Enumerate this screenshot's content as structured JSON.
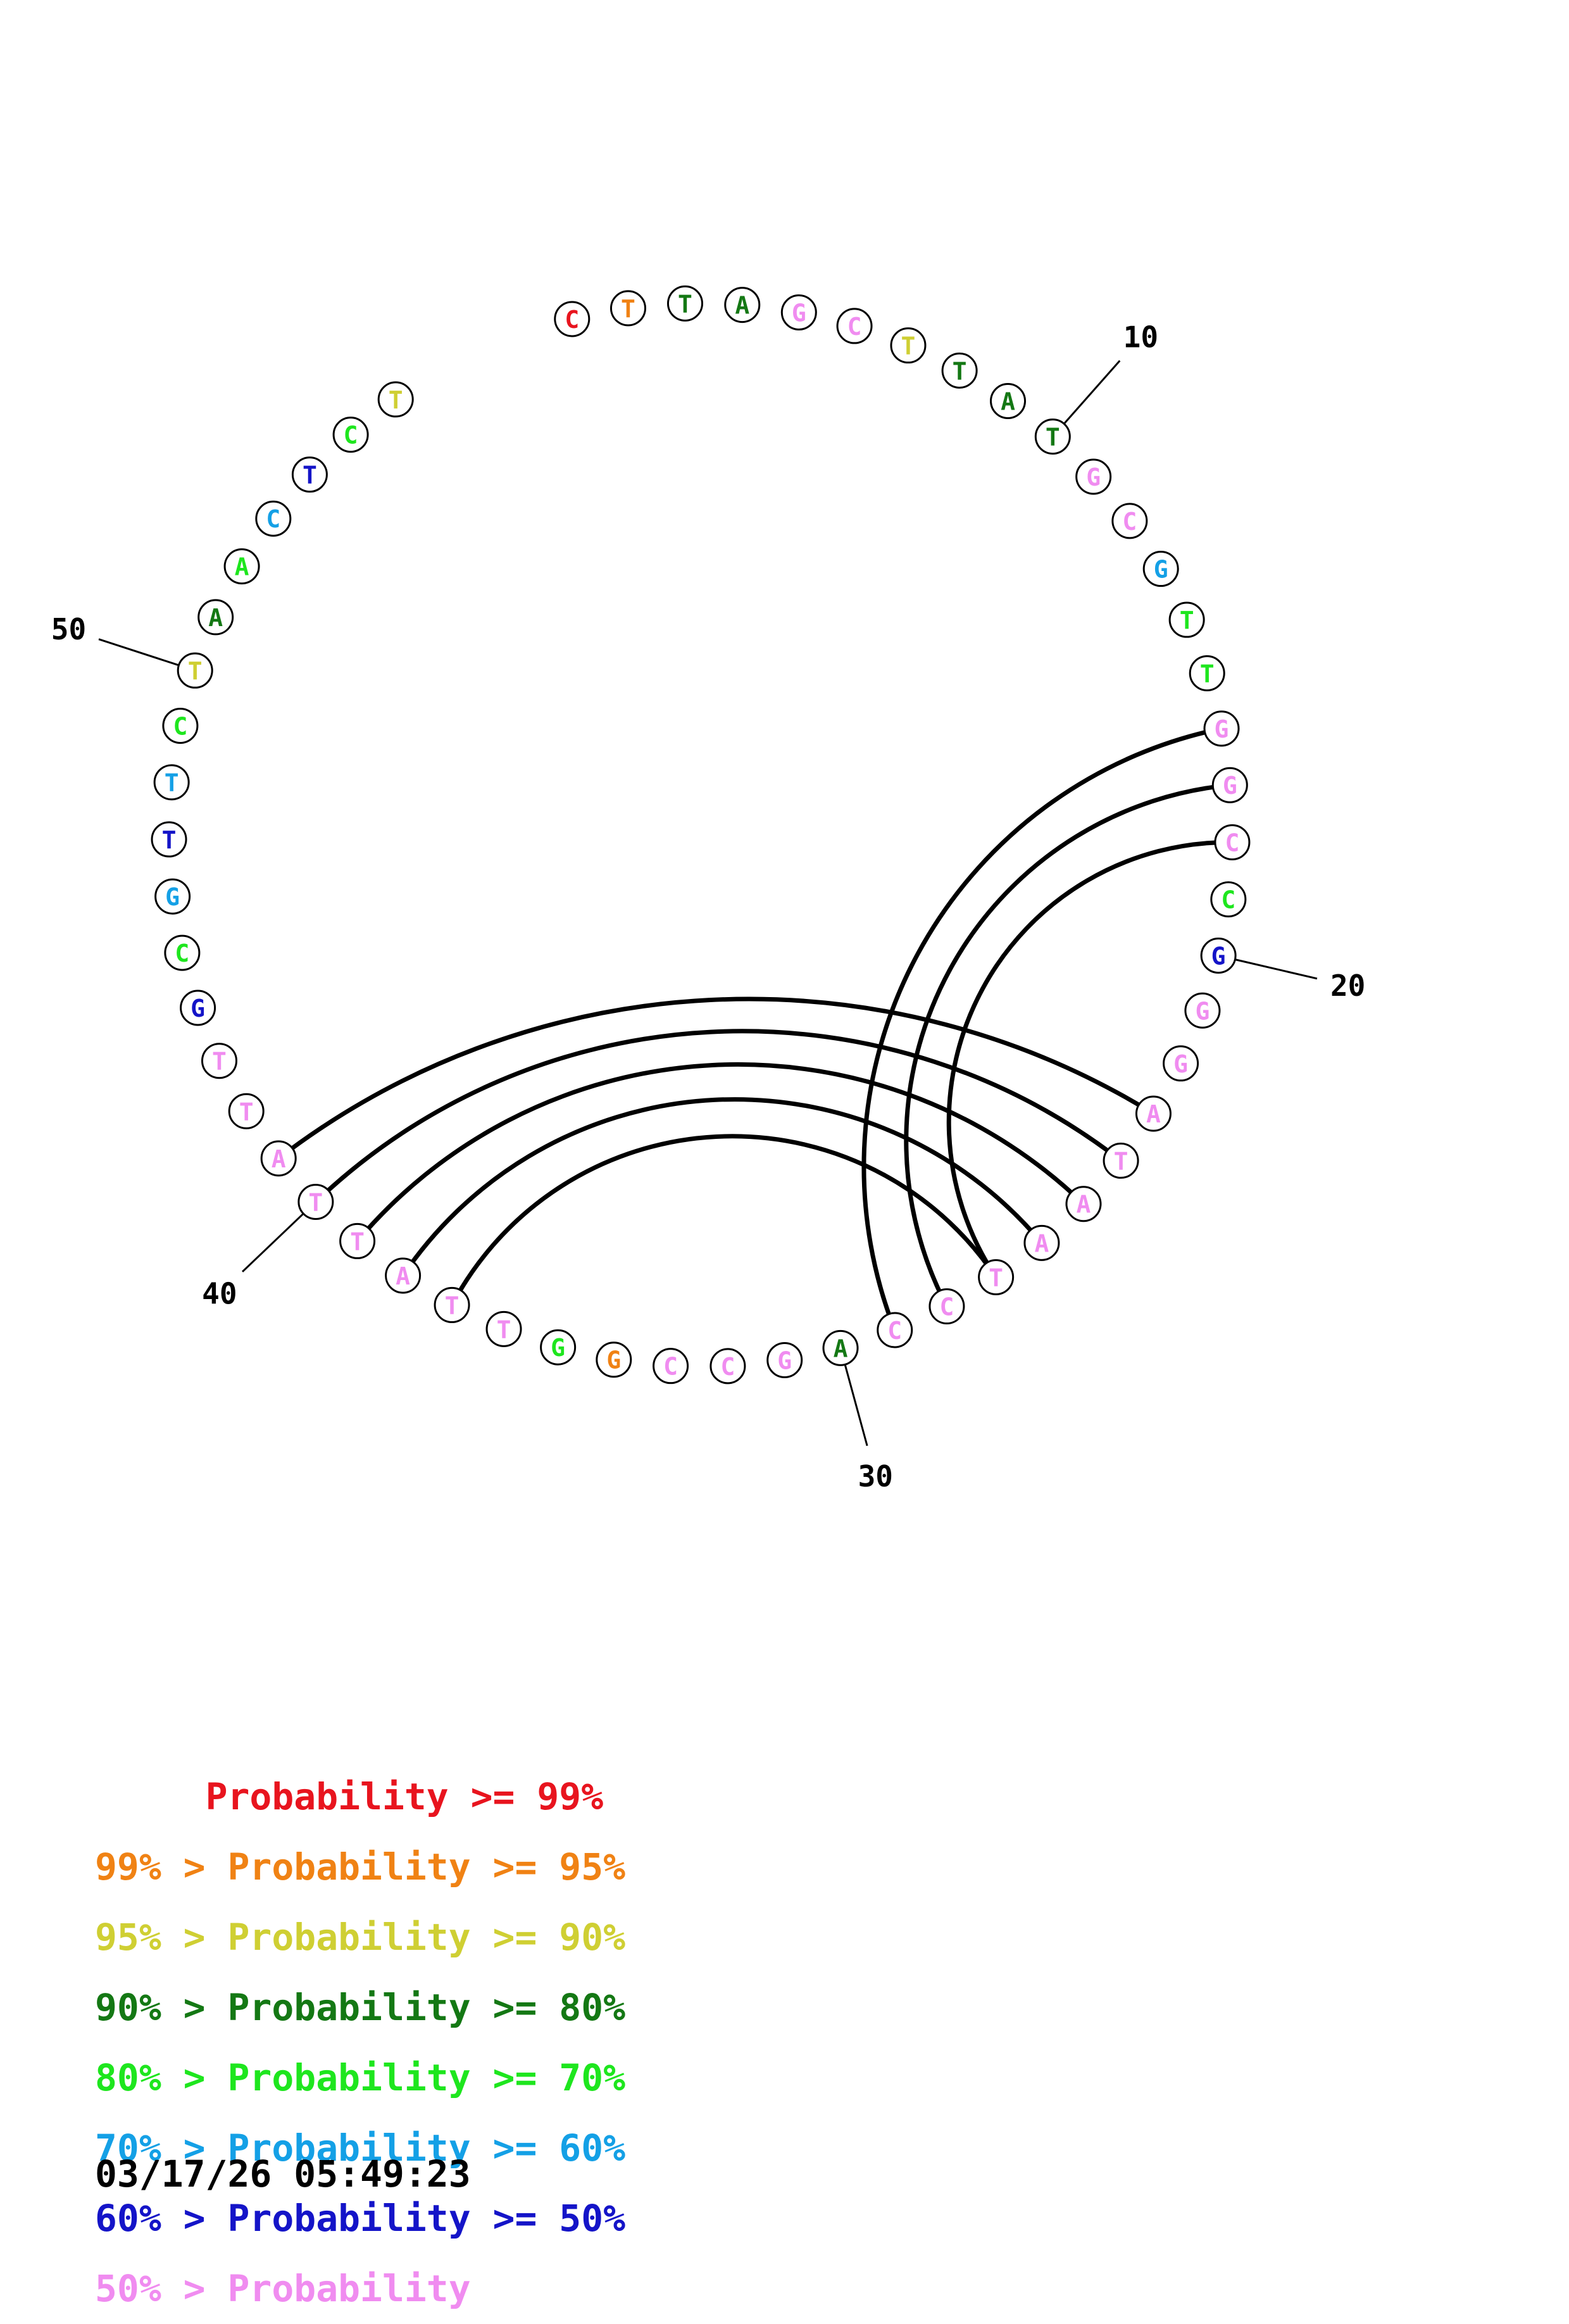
{
  "structure": {
    "sequence": [
      "C",
      "T",
      "T",
      "A",
      "G",
      "C",
      "T",
      "T",
      "A",
      "T",
      "G",
      "C",
      "G",
      "T",
      "T",
      "G",
      "G",
      "C",
      "C",
      "G",
      "G",
      "G",
      "A",
      "T",
      "A",
      "A",
      "T",
      "C",
      "C",
      "A",
      "G",
      "C",
      "C",
      "G",
      "G",
      "T",
      "T",
      "A",
      "T",
      "T",
      "A",
      "T",
      "T",
      "G",
      "C",
      "G",
      "T",
      "T",
      "C",
      "T",
      "A",
      "A",
      "C",
      "T",
      "C",
      "T"
    ],
    "probability_class": [
      0,
      1,
      3,
      3,
      7,
      7,
      2,
      3,
      3,
      3,
      7,
      7,
      5,
      4,
      4,
      7,
      7,
      7,
      4,
      6,
      7,
      7,
      7,
      7,
      7,
      7,
      7,
      7,
      7,
      3,
      7,
      7,
      7,
      1,
      4,
      7,
      7,
      7,
      7,
      7,
      7,
      7,
      7,
      6,
      4,
      5,
      6,
      5,
      4,
      2,
      3,
      4,
      5,
      6,
      4,
      2
    ],
    "pairs": [
      [
        16,
        29
      ],
      [
        17,
        28
      ],
      [
        18,
        27
      ],
      [
        23,
        41
      ],
      [
        24,
        40
      ],
      [
        25,
        39
      ],
      [
        26,
        38
      ],
      [
        27,
        37
      ]
    ],
    "pairs_comment": "",
    "tick_labels": [
      {
        "index": 10,
        "label": "10"
      },
      {
        "index": 20,
        "label": "20"
      },
      {
        "index": 30,
        "label": "30"
      },
      {
        "index": 40,
        "label": "40"
      },
      {
        "index": 50,
        "label": "50"
      }
    ]
  },
  "legend": {
    "colors": [
      "#e8141e",
      "#f08214",
      "#cfcf33",
      "#147814",
      "#1ee61e",
      "#14a0e6",
      "#1414c8",
      "#f08cf0"
    ],
    "rows": [
      "     Probability >= 99%",
      "99% > Probability >= 95%",
      "95% > Probability >= 90%",
      "90% > Probability >= 80%",
      "80% > Probability >= 70%",
      "70% > Probability >= 60%",
      "60% > Probability >= 50%",
      "50% > Probability"
    ]
  },
  "timestamp": "03/17/26 05:49:23"
}
